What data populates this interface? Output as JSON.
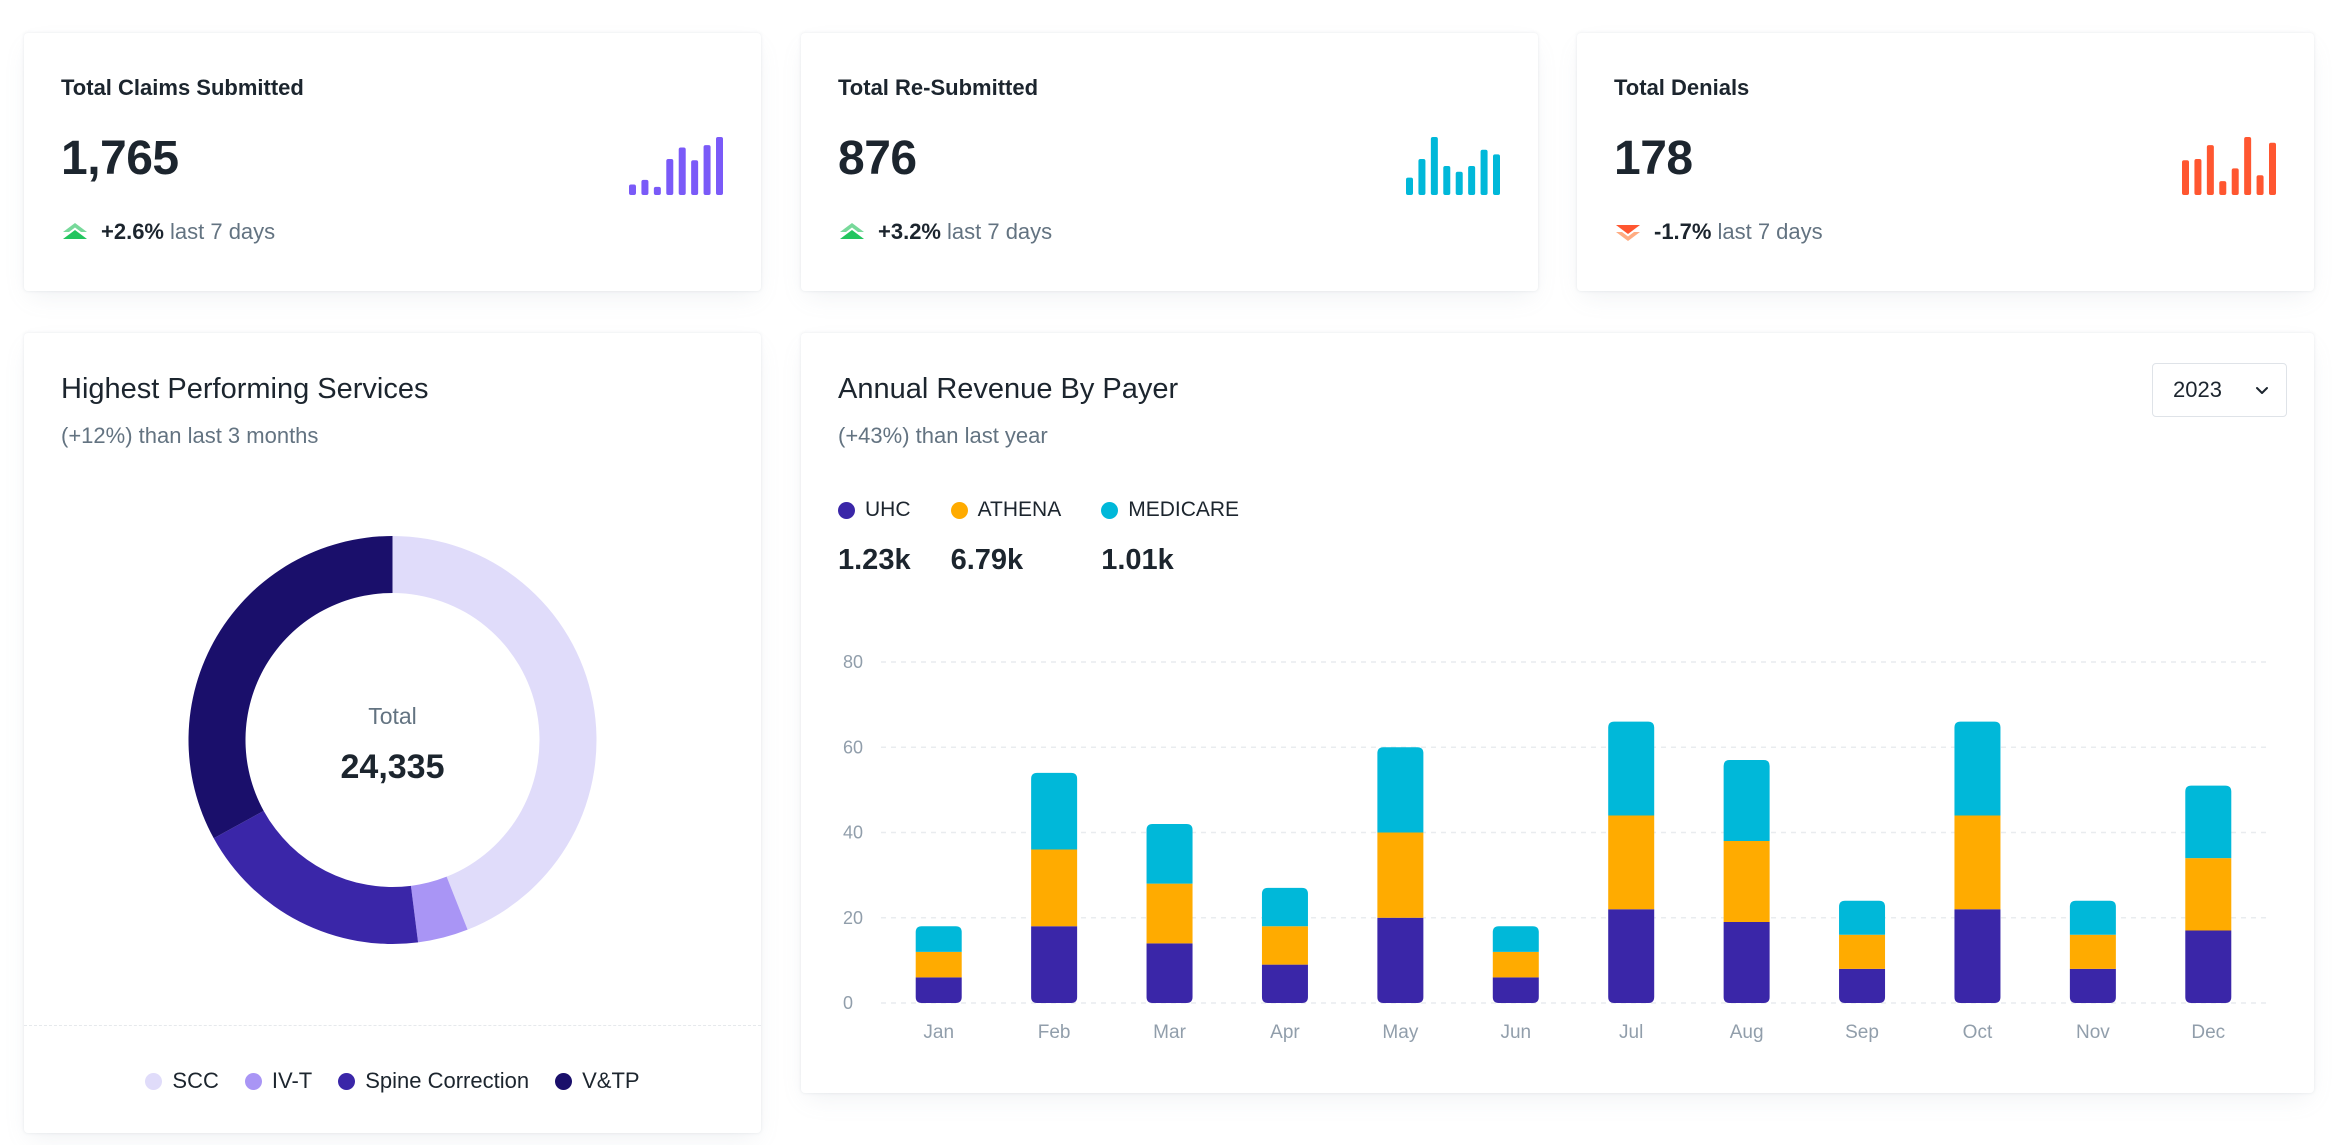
{
  "stats": [
    {
      "title": "Total Claims Submitted",
      "value": "1,765",
      "trend_dir": "up",
      "pct": "+2.6%",
      "label": "last 7 days",
      "color": "#7a5af8",
      "spark": [
        0.18,
        0.26,
        0.14,
        0.62,
        0.82,
        0.6,
        0.86,
        1.0
      ]
    },
    {
      "title": "Total Re-Submitted",
      "value": "876",
      "trend_dir": "up",
      "pct": "+3.2%",
      "label": "last 7 days",
      "color": "#00b8d9",
      "spark": [
        0.3,
        0.62,
        1.0,
        0.5,
        0.4,
        0.5,
        0.78,
        0.7
      ]
    },
    {
      "title": "Total Denials",
      "value": "178",
      "trend_dir": "down",
      "pct": "-1.7%",
      "label": "last 7 days",
      "color": "#ff5630",
      "spark": [
        0.6,
        0.62,
        0.86,
        0.24,
        0.46,
        1.0,
        0.34,
        0.9
      ]
    }
  ],
  "services": {
    "title": "Highest Performing Services",
    "subtitle": "(+12%) than last 3 months",
    "total_label": "Total",
    "total_value": "24,335",
    "segments": [
      {
        "name": "SCC",
        "value": 44,
        "color": "#e0dcfa"
      },
      {
        "name": "IV-T",
        "value": 4,
        "color": "#a995f5"
      },
      {
        "name": "Spine Correction",
        "value": 19,
        "color": "#3a26a8"
      },
      {
        "name": "V&TP",
        "value": 33,
        "color": "#1a0f6b"
      }
    ]
  },
  "revenue": {
    "title": "Annual Revenue By Payer",
    "subtitle": "(+43%) than last year",
    "year": "2023",
    "payers": [
      {
        "name": "UHC",
        "total": "1.23k",
        "color": "#3a26a8"
      },
      {
        "name": "ATHENA",
        "total": "6.79k",
        "color": "#ffab00"
      },
      {
        "name": "MEDICARE",
        "total": "1.01k",
        "color": "#00b8d9"
      }
    ]
  },
  "chart_data": {
    "type": "bar",
    "stacked": true,
    "title": "Annual Revenue By Payer",
    "categories": [
      "Jan",
      "Feb",
      "Mar",
      "Apr",
      "May",
      "Jun",
      "Jul",
      "Aug",
      "Sep",
      "Oct",
      "Nov",
      "Dec"
    ],
    "series": [
      {
        "name": "UHC",
        "values": [
          6,
          18,
          14,
          9,
          20,
          6,
          22,
          19,
          8,
          22,
          8,
          17
        ]
      },
      {
        "name": "ATHENA",
        "values": [
          6,
          18,
          14,
          9,
          20,
          6,
          22,
          19,
          8,
          22,
          8,
          17
        ]
      },
      {
        "name": "MEDICARE",
        "values": [
          6,
          18,
          14,
          9,
          20,
          6,
          22,
          19,
          8,
          22,
          8,
          17
        ]
      }
    ],
    "yticks": [
      0,
      20,
      40,
      60,
      80
    ],
    "ylim": [
      0,
      80
    ],
    "grid": true,
    "xlabel": "",
    "ylabel": ""
  }
}
